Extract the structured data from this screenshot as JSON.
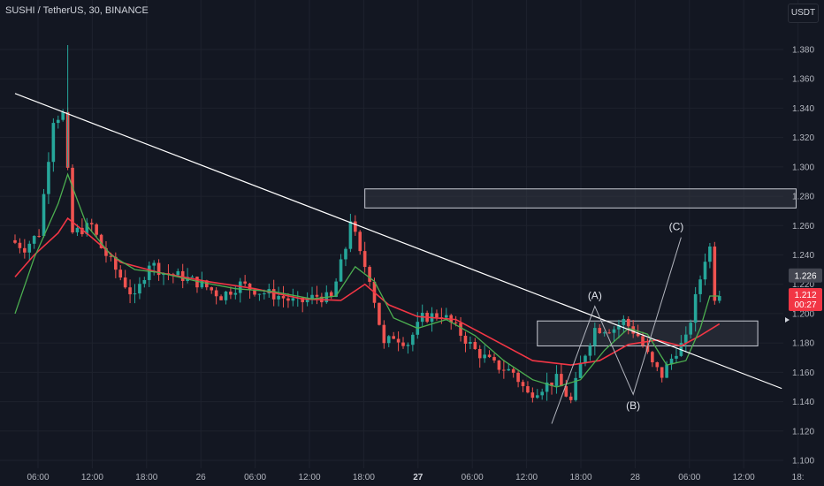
{
  "header": {
    "title": "SUSHI / TetherUS, 30, BINANCE",
    "unit": "USDT"
  },
  "colors": {
    "background": "#131722",
    "grid": "#1e222d",
    "up": "#26a69a",
    "down": "#ef5350",
    "ma_fast": "#4caf50",
    "ma_slow": "#f23645",
    "trendline": "#ffffff",
    "zone_fill": "#3a3e4a",
    "zone_border": "#c8cbd4",
    "last_price_bg": "#f23645",
    "level_badge_bg": "#434651"
  },
  "price_labels": {
    "level": "1.226",
    "last": "1.212",
    "countdown": "00:27"
  },
  "chart_data": {
    "type": "candlestick",
    "title": "SUSHI / TetherUS, 30, BINANCE",
    "ylim": [
      1.1,
      1.39
    ],
    "yticks": [
      "1.380",
      "1.360",
      "1.340",
      "1.320",
      "1.300",
      "1.280",
      "1.260",
      "1.240",
      "1.220",
      "1.200",
      "1.180",
      "1.160",
      "1.140",
      "1.120",
      "1.100"
    ],
    "xticks": [
      {
        "label": "06:00",
        "bold": false
      },
      {
        "label": "12:00",
        "bold": false
      },
      {
        "label": "18:00",
        "bold": false
      },
      {
        "label": "26",
        "bold": false
      },
      {
        "label": "06:00",
        "bold": false
      },
      {
        "label": "12:00",
        "bold": false
      },
      {
        "label": "18:00",
        "bold": false
      },
      {
        "label": "27",
        "bold": true
      },
      {
        "label": "06:00",
        "bold": false
      },
      {
        "label": "12:00",
        "bold": false
      },
      {
        "label": "18:00",
        "bold": false
      },
      {
        "label": "28",
        "bold": false
      },
      {
        "label": "06:00",
        "bold": false
      },
      {
        "label": "12:00",
        "bold": false
      },
      {
        "label": "18:",
        "bold": false
      }
    ],
    "candle_anchors": [
      [
        0,
        1.25
      ],
      [
        3,
        1.245
      ],
      [
        6,
        1.255
      ],
      [
        9,
        1.333
      ],
      [
        11,
        1.336
      ],
      [
        13,
        1.255
      ],
      [
        17,
        1.26
      ],
      [
        19,
        1.245
      ],
      [
        22,
        1.23
      ],
      [
        26,
        1.21
      ],
      [
        29,
        1.235
      ],
      [
        32,
        1.228
      ],
      [
        36,
        1.225
      ],
      [
        40,
        1.22
      ],
      [
        44,
        1.212
      ],
      [
        48,
        1.22
      ],
      [
        52,
        1.215
      ],
      [
        56,
        1.212
      ],
      [
        60,
        1.207
      ],
      [
        64,
        1.212
      ],
      [
        67,
        1.21
      ],
      [
        70,
        1.245
      ],
      [
        71,
        1.265
      ],
      [
        73,
        1.24
      ],
      [
        75,
        1.225
      ],
      [
        78,
        1.178
      ],
      [
        80,
        1.185
      ],
      [
        83,
        1.18
      ],
      [
        86,
        1.197
      ],
      [
        90,
        1.2
      ],
      [
        93,
        1.19
      ],
      [
        97,
        1.175
      ],
      [
        101,
        1.165
      ],
      [
        105,
        1.16
      ],
      [
        108,
        1.145
      ],
      [
        111,
        1.15
      ],
      [
        114,
        1.155
      ],
      [
        117,
        1.14
      ],
      [
        119,
        1.165
      ],
      [
        122,
        1.19
      ],
      [
        126,
        1.19
      ],
      [
        128,
        1.195
      ],
      [
        131,
        1.185
      ],
      [
        134,
        1.165
      ],
      [
        136,
        1.158
      ],
      [
        139,
        1.175
      ],
      [
        141,
        1.182
      ],
      [
        143,
        1.21
      ],
      [
        145,
        1.238
      ],
      [
        146,
        1.245
      ],
      [
        147,
        1.212
      ]
    ],
    "ma_fast": [
      [
        0,
        1.2
      ],
      [
        4,
        1.238
      ],
      [
        9,
        1.275
      ],
      [
        11,
        1.295
      ],
      [
        15,
        1.26
      ],
      [
        20,
        1.24
      ],
      [
        25,
        1.23
      ],
      [
        30,
        1.228
      ],
      [
        38,
        1.222
      ],
      [
        46,
        1.217
      ],
      [
        54,
        1.215
      ],
      [
        62,
        1.21
      ],
      [
        67,
        1.212
      ],
      [
        71,
        1.232
      ],
      [
        75,
        1.222
      ],
      [
        79,
        1.197
      ],
      [
        84,
        1.19
      ],
      [
        90,
        1.196
      ],
      [
        96,
        1.185
      ],
      [
        102,
        1.168
      ],
      [
        108,
        1.155
      ],
      [
        113,
        1.15
      ],
      [
        118,
        1.155
      ],
      [
        123,
        1.175
      ],
      [
        128,
        1.19
      ],
      [
        132,
        1.186
      ],
      [
        136,
        1.165
      ],
      [
        140,
        1.168
      ],
      [
        143,
        1.19
      ],
      [
        145,
        1.212
      ],
      [
        147,
        1.212
      ]
    ],
    "ma_slow": [
      [
        0,
        1.225
      ],
      [
        4,
        1.24
      ],
      [
        9,
        1.255
      ],
      [
        11,
        1.265
      ],
      [
        16,
        1.252
      ],
      [
        22,
        1.235
      ],
      [
        30,
        1.228
      ],
      [
        40,
        1.222
      ],
      [
        50,
        1.217
      ],
      [
        60,
        1.21
      ],
      [
        68,
        1.209
      ],
      [
        73,
        1.22
      ],
      [
        78,
        1.206
      ],
      [
        84,
        1.198
      ],
      [
        92,
        1.196
      ],
      [
        100,
        1.182
      ],
      [
        108,
        1.168
      ],
      [
        116,
        1.165
      ],
      [
        122,
        1.168
      ],
      [
        128,
        1.179
      ],
      [
        134,
        1.182
      ],
      [
        139,
        1.178
      ],
      [
        143,
        1.185
      ],
      [
        147,
        1.193
      ]
    ],
    "trendline": [
      [
        0,
        1.35
      ],
      [
        160,
        1.149
      ]
    ],
    "zones": [
      {
        "x1": 73,
        "x2": 163,
        "y1": 1.272,
        "y2": 1.285
      },
      {
        "x1": 109,
        "x2": 155,
        "y1": 1.178,
        "y2": 1.195
      }
    ],
    "wave_lines": [
      [
        [
          112,
          1.125
        ],
        [
          121,
          1.205
        ],
        [
          129,
          1.145
        ],
        [
          139,
          1.252
        ]
      ]
    ],
    "annotations": [
      {
        "text": "(A)",
        "x": 121,
        "y": 1.21
      },
      {
        "text": "(B)",
        "x": 129,
        "y": 1.135
      },
      {
        "text": "(C)",
        "x": 138,
        "y": 1.257
      }
    ]
  }
}
